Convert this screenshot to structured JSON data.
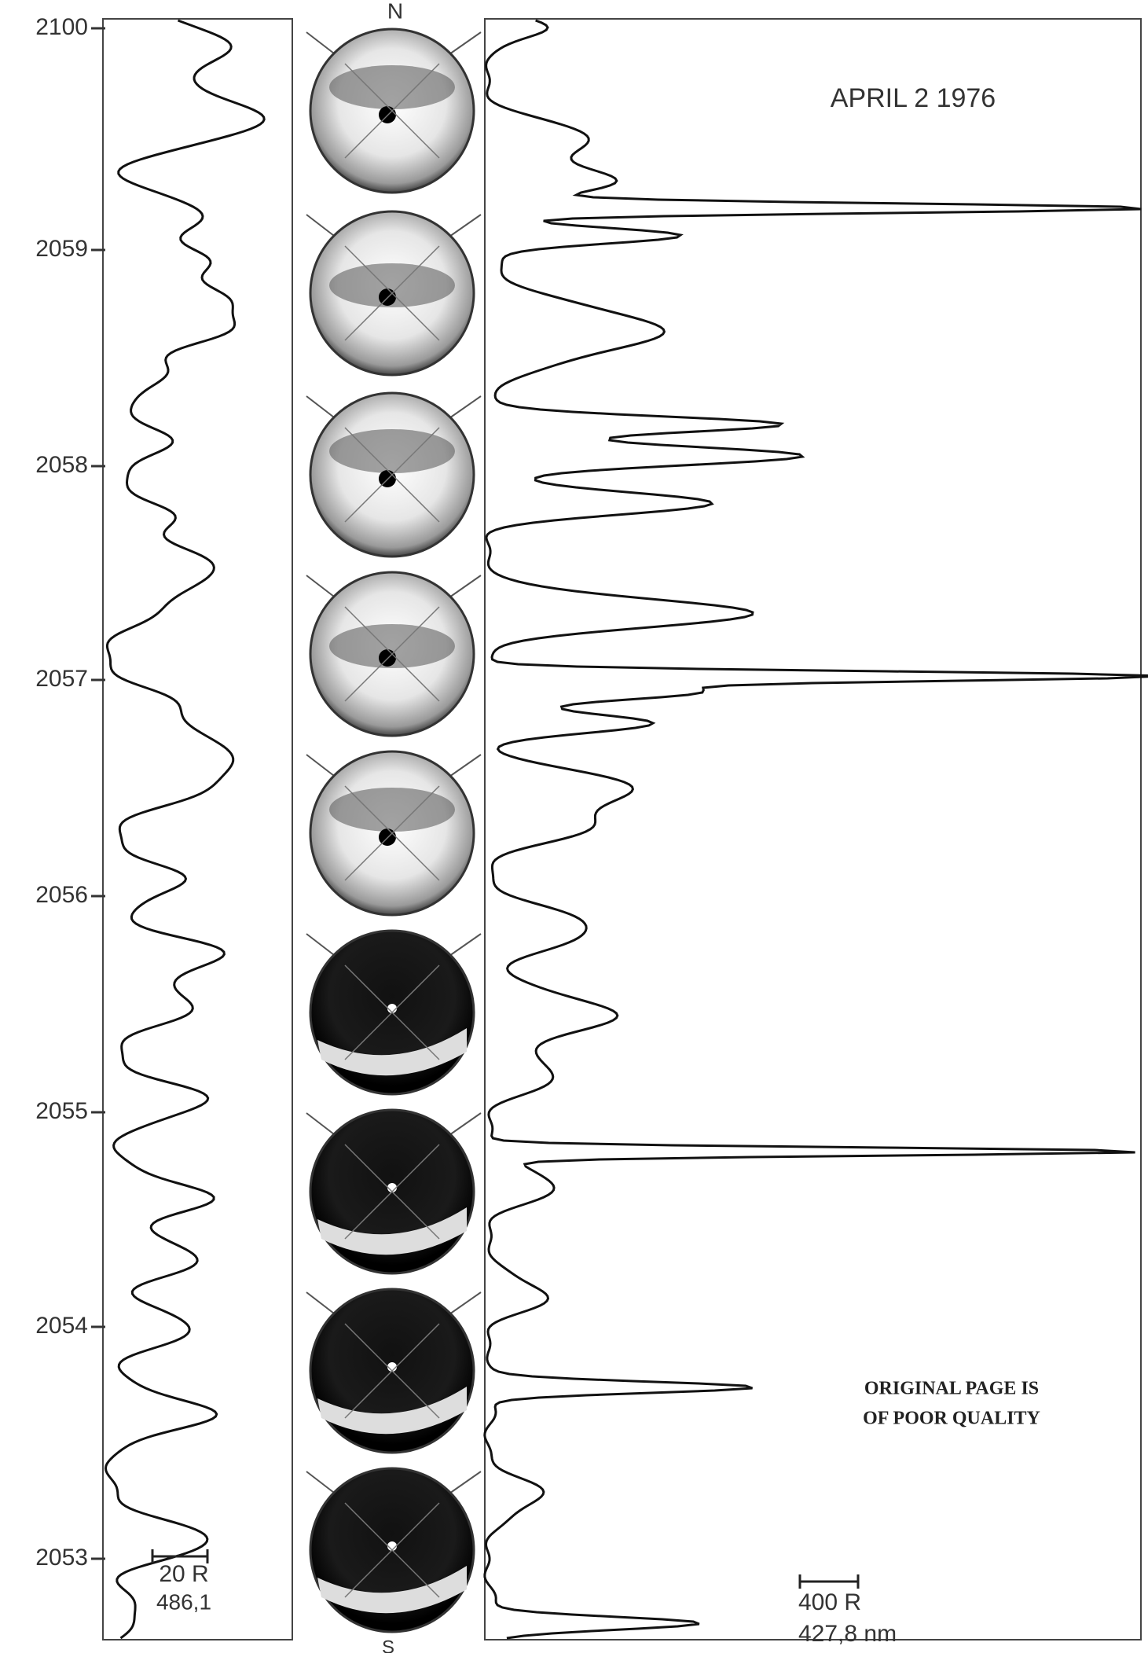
{
  "figure": {
    "date": "APRIL 2 1976",
    "compass": {
      "north": "N",
      "south": "S"
    },
    "time_axis": [
      "2100",
      "2059",
      "2058",
      "2057",
      "2056",
      "2055",
      "2054",
      "2053"
    ],
    "left_scale": {
      "bar": "20 R",
      "wavelength": "486,1"
    },
    "right_scale": {
      "bar": "400 R",
      "wavelength": "427,8 nm"
    },
    "stamp": [
      "ORIGINAL PAGE IS",
      "OF POOR QUALITY"
    ]
  }
}
